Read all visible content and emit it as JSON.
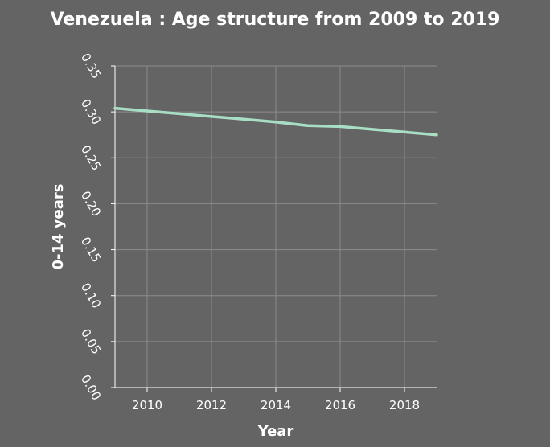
{
  "chart_data": {
    "type": "line",
    "title": "Venezuela : Age structure from 2009 to 2019",
    "xlabel": "Year",
    "ylabel": "0-14 years",
    "xlim": [
      2009,
      2019
    ],
    "ylim": [
      0,
      0.35
    ],
    "x_ticks": [
      2010,
      2012,
      2014,
      2016,
      2018
    ],
    "x_tick_labels": [
      "2010",
      "2012",
      "2014",
      "2016",
      "2018"
    ],
    "y_ticks": [
      0,
      0.05,
      0.1,
      0.15,
      0.2,
      0.25,
      0.3,
      0.35
    ],
    "y_tick_labels": [
      "0.00",
      "0.05",
      "0.10",
      "0.15",
      "0.20",
      "0.25",
      "0.30",
      "0.35"
    ],
    "grid": true,
    "line_color": "#a8dfc4",
    "series": [
      {
        "x": [
          2009,
          2010,
          2011,
          2012,
          2013,
          2014,
          2015,
          2016,
          2017,
          2018,
          2019
        ],
        "values": [
          0.304,
          0.301,
          0.298,
          0.295,
          0.292,
          0.289,
          0.285,
          0.284,
          0.281,
          0.278,
          0.275
        ]
      }
    ]
  }
}
